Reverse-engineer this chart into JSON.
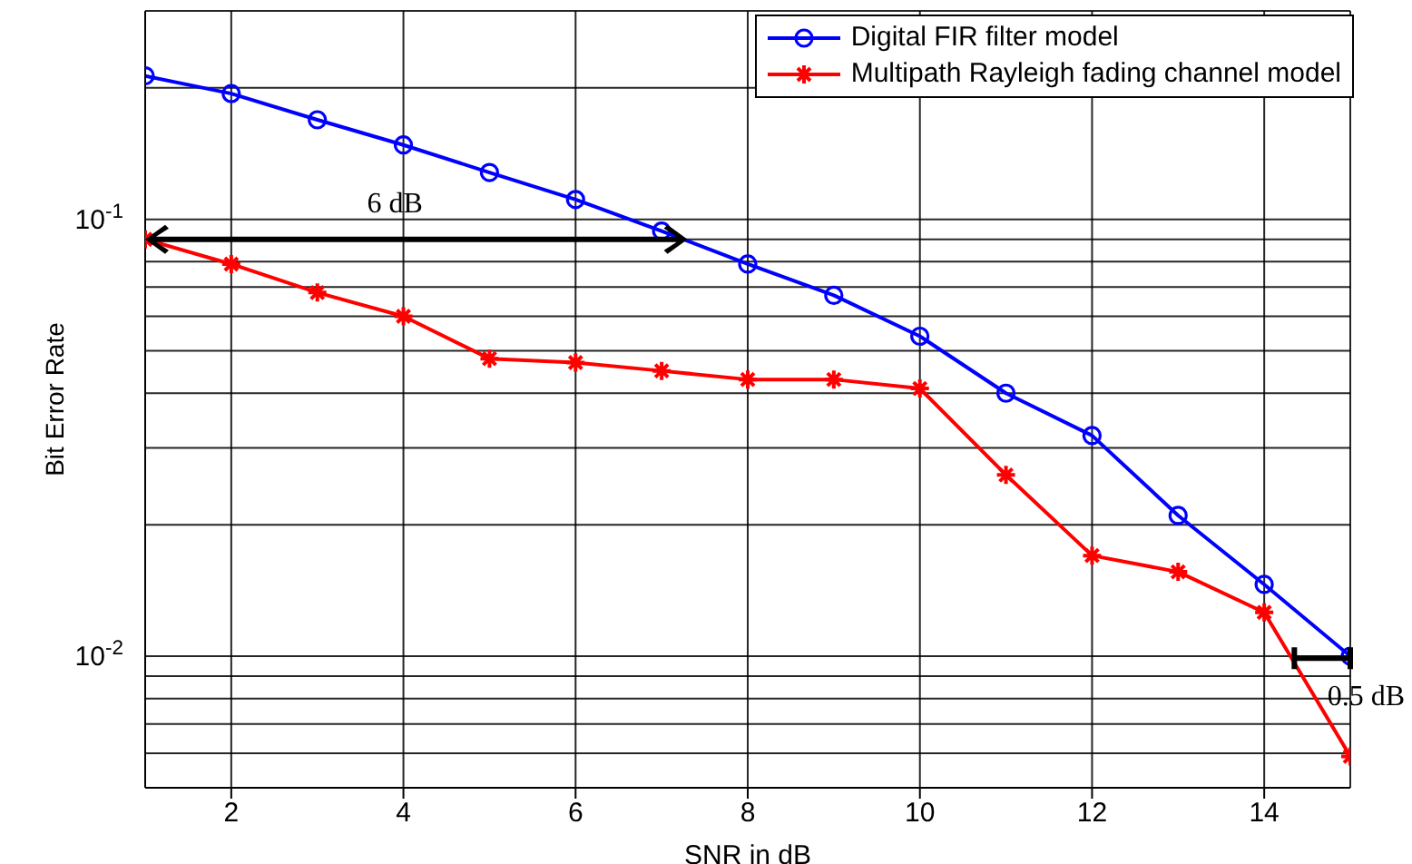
{
  "chart_data": {
    "type": "line",
    "xlabel": "SNR in dB",
    "ylabel": "Bit Error Rate",
    "x": [
      1,
      2,
      3,
      4,
      5,
      6,
      7,
      8,
      9,
      10,
      11,
      12,
      13,
      14,
      15
    ],
    "series": [
      {
        "name": "Digital FIR filter model",
        "color": "#0000ff",
        "marker": "circle",
        "values": [
          0.213,
          0.194,
          0.169,
          0.148,
          0.128,
          0.111,
          0.094,
          0.079,
          0.067,
          0.054,
          0.04,
          0.032,
          0.021,
          0.0146,
          0.01
        ]
      },
      {
        "name": "Multipath Rayleigh fading channel model",
        "color": "#ff0000",
        "marker": "cross",
        "values": [
          0.09,
          0.079,
          0.068,
          0.06,
          0.048,
          0.047,
          0.045,
          0.043,
          0.043,
          0.041,
          0.026,
          0.017,
          0.0156,
          0.0126,
          0.0059
        ]
      }
    ],
    "log": "y",
    "xlim": [
      1,
      15
    ],
    "ylim": [
      0.005,
      0.3
    ],
    "xticks": [
      2,
      4,
      6,
      8,
      10,
      12,
      14
    ],
    "yticks": [
      {
        "value": 0.006,
        "label": null
      },
      {
        "value": 0.007,
        "label": null
      },
      {
        "value": 0.008,
        "label": null
      },
      {
        "value": 0.009,
        "label": null
      },
      {
        "value": 0.01,
        "label": "10$^{-2}$"
      },
      {
        "value": 0.02,
        "label": null
      },
      {
        "value": 0.03,
        "label": null
      },
      {
        "value": 0.04,
        "label": null
      },
      {
        "value": 0.05,
        "label": null
      },
      {
        "value": 0.06,
        "label": null
      },
      {
        "value": 0.07,
        "label": null
      },
      {
        "value": 0.08,
        "label": null
      },
      {
        "value": 0.09,
        "label": null
      },
      {
        "value": 0.1,
        "label": "10$^{-1}$"
      },
      {
        "value": 0.2,
        "label": null
      }
    ],
    "grid": true,
    "legend": "top right",
    "line_style": "solid",
    "annotations": [
      "6 dB",
      "0.5 dB"
    ]
  }
}
